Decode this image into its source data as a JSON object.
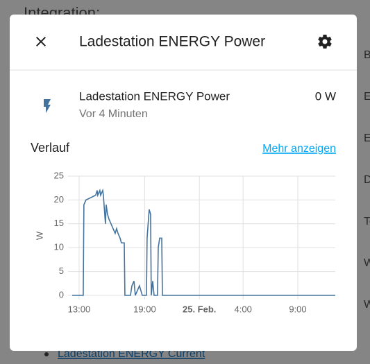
{
  "background": {
    "heading": "Integration:",
    "side_items": [
      "Be",
      "Es",
      "Es",
      "DI",
      "Te",
      "W",
      "W"
    ],
    "link": "Ladestation ENERGY Current"
  },
  "dialog": {
    "title": "Ladestation ENERGY Power",
    "entity": {
      "name": "Ladestation ENERGY Power",
      "state": "0 W",
      "last_changed": "Vor 4 Minuten"
    },
    "history_heading": "Verlauf",
    "more_link": "Mehr anzeigen"
  },
  "chart_data": {
    "type": "line",
    "ylabel": "W",
    "xlim": [
      12.37,
      36.43
    ],
    "xticks": [
      {
        "value": 13,
        "label": "13:00"
      },
      {
        "value": 19,
        "label": "19:00"
      },
      {
        "value": 24,
        "label": "25. Feb."
      },
      {
        "value": 28,
        "label": "4:00"
      },
      {
        "value": 33,
        "label": "9:00"
      }
    ],
    "ylim": [
      0,
      25
    ],
    "yticks": [
      0,
      5,
      10,
      15,
      20,
      25
    ],
    "grid": true,
    "x": [
      12.37,
      13.38,
      13.44,
      13.63,
      14.52,
      14.65,
      14.71,
      14.9,
      14.97,
      15.16,
      15.22,
      15.41,
      15.48,
      15.6,
      15.73,
      15.92,
      16.11,
      16.3,
      16.43,
      16.56,
      16.75,
      16.87,
      17.13,
      17.19,
      17.7,
      17.83,
      18.02,
      18.14,
      18.52,
      18.78,
      19.16,
      19.22,
      19.41,
      19.54,
      19.6,
      19.73,
      19.86,
      20.17,
      20.24,
      20.37,
      20.56,
      20.62,
      36.43
    ],
    "series": [
      {
        "name": "Ladestation ENERGY Power",
        "color": "#44739e",
        "values": [
          0,
          0,
          19,
          20,
          21,
          22,
          21,
          22,
          21,
          22,
          21,
          15,
          19,
          17,
          16,
          15,
          14,
          13,
          14,
          13,
          12,
          11,
          11,
          0,
          0,
          2,
          3,
          0,
          2,
          0,
          0,
          12,
          18,
          17,
          0,
          3,
          0,
          0,
          10,
          12,
          12,
          0,
          0
        ]
      }
    ]
  }
}
